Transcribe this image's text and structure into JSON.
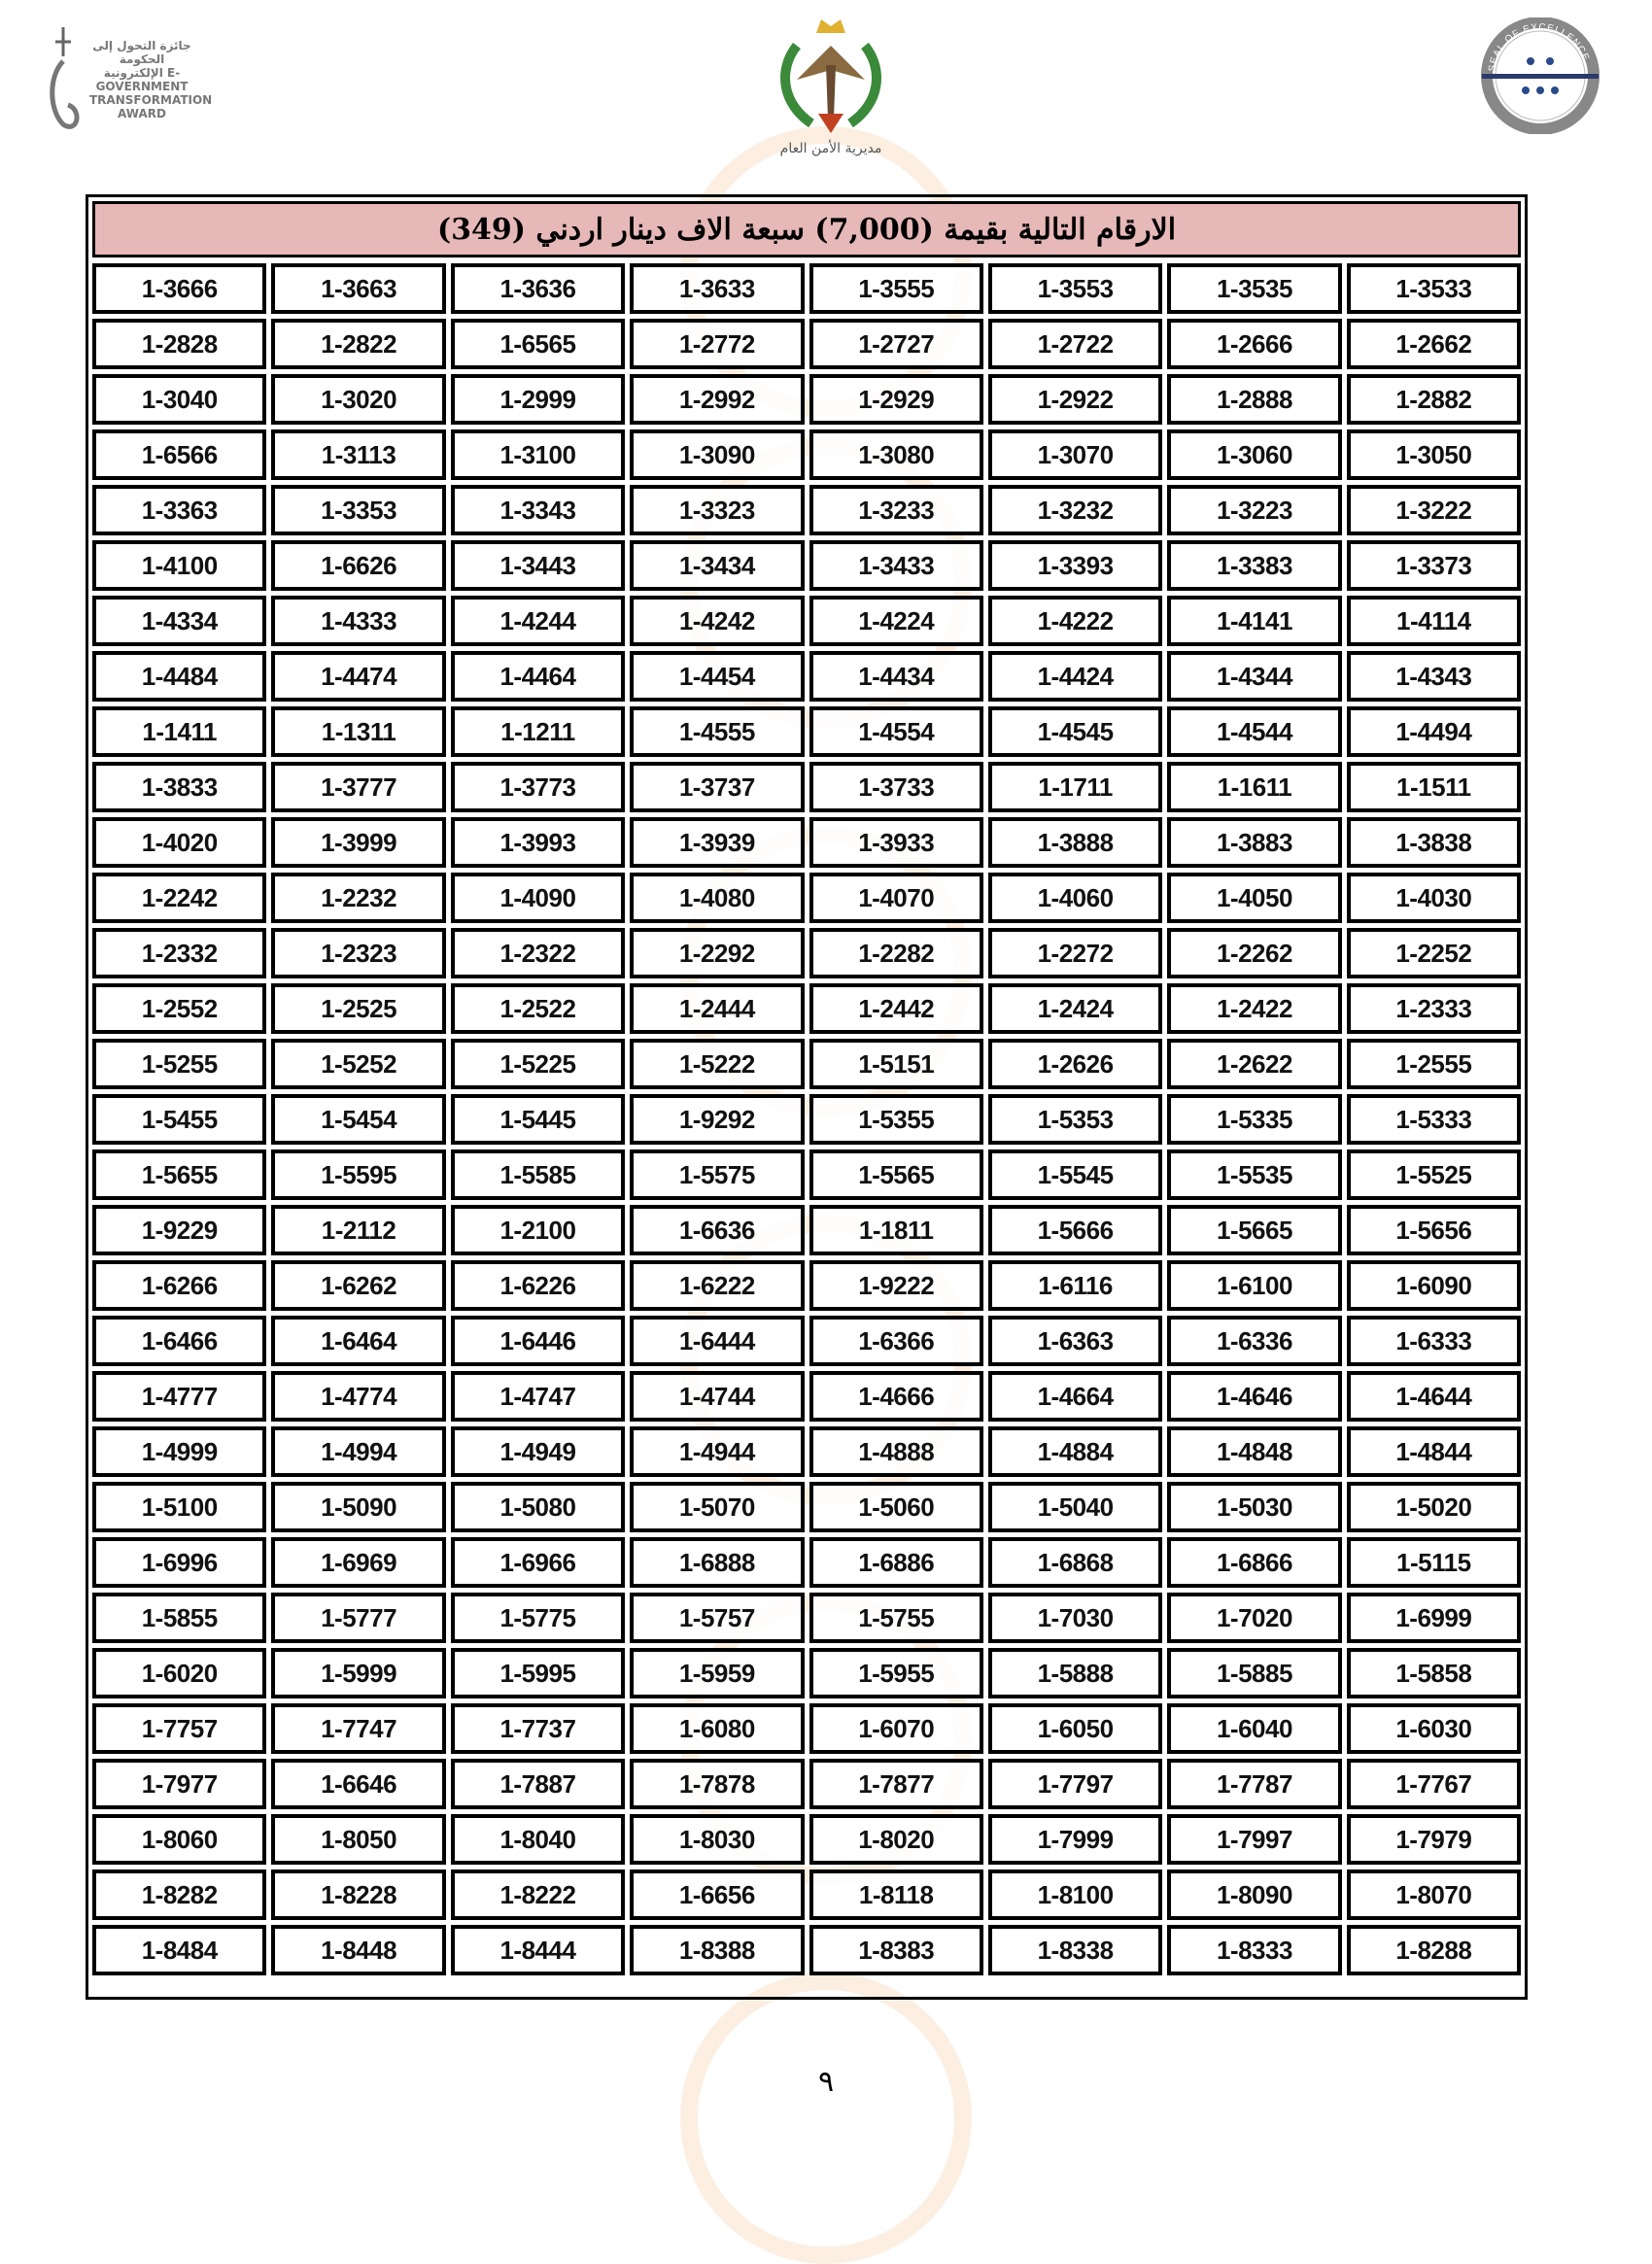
{
  "header": {
    "left_logo_text": "جائزة التحول إلى الحكومة الإلكترونية E-GOVERNMENT TRANSFORMATION AWARD",
    "center_logo_text": "مديرية الأمن العام",
    "right_logo_text": "SEAL OF EXCELLENCE"
  },
  "table": {
    "title": "الارقام التالية بقيمة (7,000) سبعة الاف دينار اردني (349)",
    "rows": [
      [
        "1-3666",
        "1-3663",
        "1-3636",
        "1-3633",
        "1-3555",
        "1-3553",
        "1-3535",
        "1-3533"
      ],
      [
        "1-2828",
        "1-2822",
        "1-6565",
        "1-2772",
        "1-2727",
        "1-2722",
        "1-2666",
        "1-2662"
      ],
      [
        "1-3040",
        "1-3020",
        "1-2999",
        "1-2992",
        "1-2929",
        "1-2922",
        "1-2888",
        "1-2882"
      ],
      [
        "1-6566",
        "1-3113",
        "1-3100",
        "1-3090",
        "1-3080",
        "1-3070",
        "1-3060",
        "1-3050"
      ],
      [
        "1-3363",
        "1-3353",
        "1-3343",
        "1-3323",
        "1-3233",
        "1-3232",
        "1-3223",
        "1-3222"
      ],
      [
        "1-4100",
        "1-6626",
        "1-3443",
        "1-3434",
        "1-3433",
        "1-3393",
        "1-3383",
        "1-3373"
      ],
      [
        "1-4334",
        "1-4333",
        "1-4244",
        "1-4242",
        "1-4224",
        "1-4222",
        "1-4141",
        "1-4114"
      ],
      [
        "1-4484",
        "1-4474",
        "1-4464",
        "1-4454",
        "1-4434",
        "1-4424",
        "1-4344",
        "1-4343"
      ],
      [
        "1-1411",
        "1-1311",
        "1-1211",
        "1-4555",
        "1-4554",
        "1-4545",
        "1-4544",
        "1-4494"
      ],
      [
        "1-3833",
        "1-3777",
        "1-3773",
        "1-3737",
        "1-3733",
        "1-1711",
        "1-1611",
        "1-1511"
      ],
      [
        "1-4020",
        "1-3999",
        "1-3993",
        "1-3939",
        "1-3933",
        "1-3888",
        "1-3883",
        "1-3838"
      ],
      [
        "1-2242",
        "1-2232",
        "1-4090",
        "1-4080",
        "1-4070",
        "1-4060",
        "1-4050",
        "1-4030"
      ],
      [
        "1-2332",
        "1-2323",
        "1-2322",
        "1-2292",
        "1-2282",
        "1-2272",
        "1-2262",
        "1-2252"
      ],
      [
        "1-2552",
        "1-2525",
        "1-2522",
        "1-2444",
        "1-2442",
        "1-2424",
        "1-2422",
        "1-2333"
      ],
      [
        "1-5255",
        "1-5252",
        "1-5225",
        "1-5222",
        "1-5151",
        "1-2626",
        "1-2622",
        "1-2555"
      ],
      [
        "1-5455",
        "1-5454",
        "1-5445",
        "1-9292",
        "1-5355",
        "1-5353",
        "1-5335",
        "1-5333"
      ],
      [
        "1-5655",
        "1-5595",
        "1-5585",
        "1-5575",
        "1-5565",
        "1-5545",
        "1-5535",
        "1-5525"
      ],
      [
        "1-9229",
        "1-2112",
        "1-2100",
        "1-6636",
        "1-1811",
        "1-5666",
        "1-5665",
        "1-5656"
      ],
      [
        "1-6266",
        "1-6262",
        "1-6226",
        "1-6222",
        "1-9222",
        "1-6116",
        "1-6100",
        "1-6090"
      ],
      [
        "1-6466",
        "1-6464",
        "1-6446",
        "1-6444",
        "1-6366",
        "1-6363",
        "1-6336",
        "1-6333"
      ],
      [
        "1-4777",
        "1-4774",
        "1-4747",
        "1-4744",
        "1-4666",
        "1-4664",
        "1-4646",
        "1-4644"
      ],
      [
        "1-4999",
        "1-4994",
        "1-4949",
        "1-4944",
        "1-4888",
        "1-4884",
        "1-4848",
        "1-4844"
      ],
      [
        "1-5100",
        "1-5090",
        "1-5080",
        "1-5070",
        "1-5060",
        "1-5040",
        "1-5030",
        "1-5020"
      ],
      [
        "1-6996",
        "1-6969",
        "1-6966",
        "1-6888",
        "1-6886",
        "1-6868",
        "1-6866",
        "1-5115"
      ],
      [
        "1-5855",
        "1-5777",
        "1-5775",
        "1-5757",
        "1-5755",
        "1-7030",
        "1-7020",
        "1-6999"
      ],
      [
        "1-6020",
        "1-5999",
        "1-5995",
        "1-5959",
        "1-5955",
        "1-5888",
        "1-5885",
        "1-5858"
      ],
      [
        "1-7757",
        "1-7747",
        "1-7737",
        "1-6080",
        "1-6070",
        "1-6050",
        "1-6040",
        "1-6030"
      ],
      [
        "1-7977",
        "1-6646",
        "1-7887",
        "1-7878",
        "1-7877",
        "1-7797",
        "1-7787",
        "1-7767"
      ],
      [
        "1-8060",
        "1-8050",
        "1-8040",
        "1-8030",
        "1-8020",
        "1-7999",
        "1-7997",
        "1-7979"
      ],
      [
        "1-8282",
        "1-8228",
        "1-8222",
        "1-6656",
        "1-8118",
        "1-8100",
        "1-8090",
        "1-8070"
      ],
      [
        "1-8484",
        "1-8448",
        "1-8444",
        "1-8388",
        "1-8383",
        "1-8338",
        "1-8333",
        "1-8288"
      ]
    ]
  },
  "colors": {
    "title_bg": "#e6b8b7",
    "border": "#000000"
  },
  "footer": {
    "page_number": "٩"
  }
}
